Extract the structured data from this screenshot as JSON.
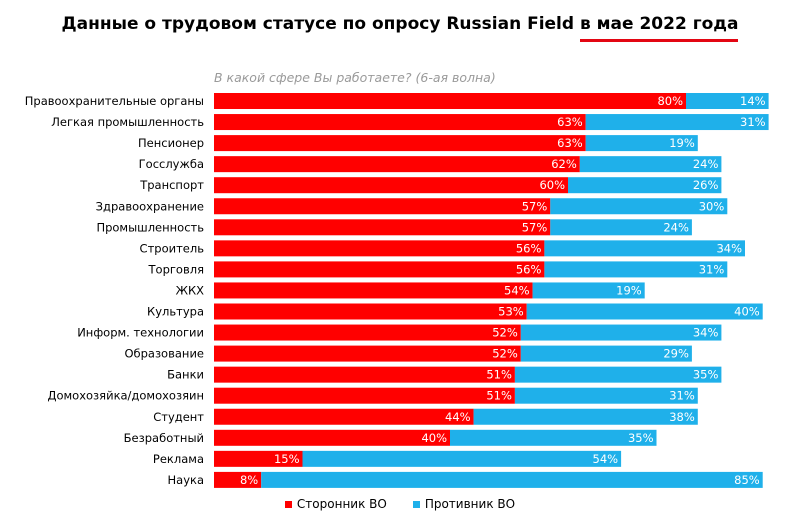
{
  "title": {
    "main": "Данные о трудовом статусе по опросу Russian Field ",
    "highlight": "в мае 2022 года"
  },
  "subtitle": "В какой сфере Вы работаете? (6-ая волна)",
  "colors": {
    "support": "#ff0000",
    "oppose": "#1fb0ea",
    "underline": "#e30613"
  },
  "legend": {
    "support": "Сторонник ВО",
    "oppose": "Противник ВО"
  },
  "chart_data": {
    "type": "bar",
    "orientation": "horizontal",
    "stacked": true,
    "categories": [
      "Правоохранительные органы",
      "Легкая промышленность",
      "Пенсионер",
      "Госслужба",
      "Транспорт",
      "Здравоохранение",
      "Промышленность",
      "Строитель",
      "Торговля",
      "ЖКХ",
      "Культура",
      "Информ. технологии",
      "Образование",
      "Банки",
      "Домохозяйка/домохозяин",
      "Студент",
      "Безработный",
      "Реклама",
      "Наука"
    ],
    "series": [
      {
        "name": "Сторонник ВО",
        "values": [
          80,
          63,
          63,
          62,
          60,
          57,
          57,
          56,
          56,
          54,
          53,
          52,
          52,
          51,
          51,
          44,
          40,
          15,
          8
        ]
      },
      {
        "name": "Противник ВО",
        "values": [
          14,
          31,
          19,
          24,
          26,
          30,
          24,
          34,
          31,
          19,
          40,
          34,
          29,
          35,
          31,
          38,
          35,
          54,
          85
        ]
      }
    ],
    "value_suffix": "%",
    "xlim": [
      0,
      100
    ],
    "grid": false,
    "legend_position": "bottom"
  }
}
